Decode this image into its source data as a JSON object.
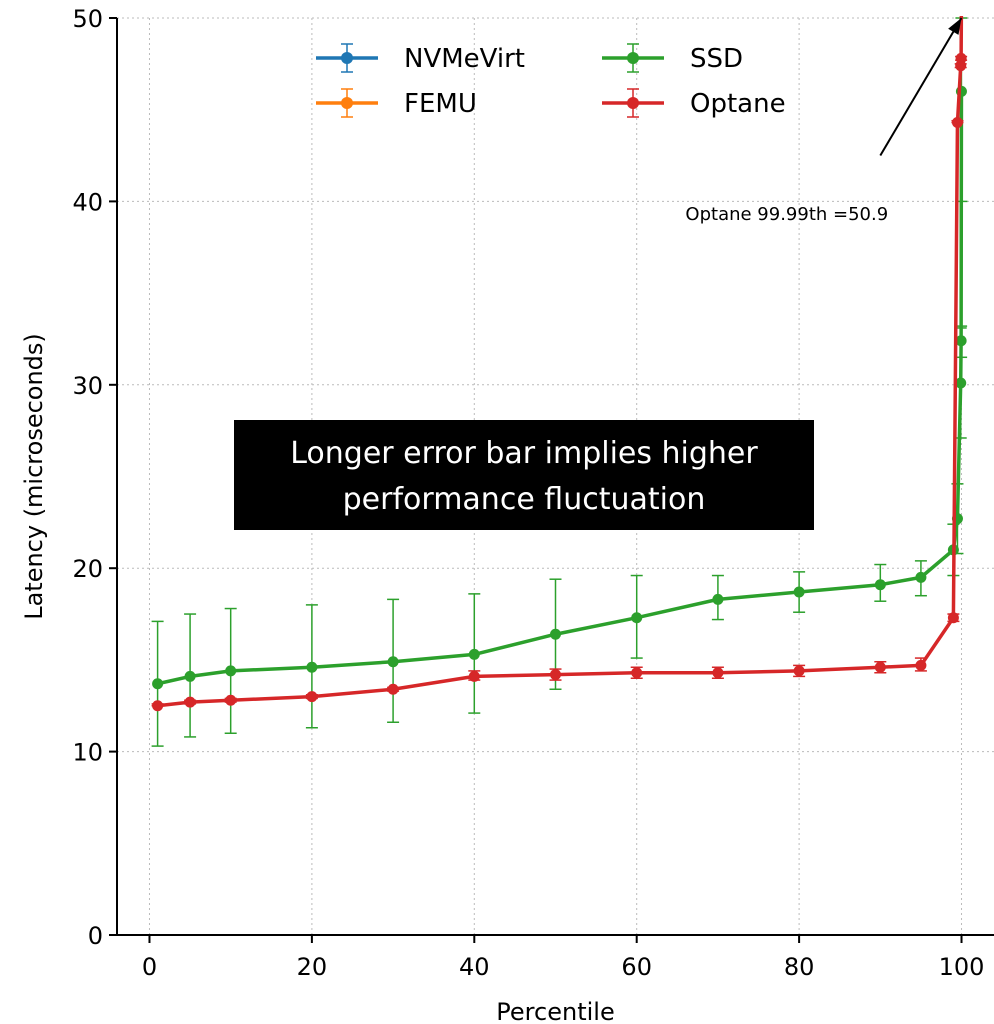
{
  "chart_data": {
    "type": "line",
    "xlabel": "Percentile",
    "ylabel": "Latency (microseconds)",
    "xlim": [
      -4,
      104
    ],
    "ylim": [
      0,
      50
    ],
    "xticks": [
      0,
      20,
      40,
      60,
      80,
      100
    ],
    "yticks": [
      0,
      10,
      20,
      30,
      40,
      50
    ],
    "grid": true,
    "legend_placement": "top-center",
    "series": [
      {
        "name": "NVMeVirt",
        "color": "#1f77b4",
        "x": [],
        "y": [],
        "err_low": [],
        "err_high": []
      },
      {
        "name": "FEMU",
        "color": "#ff7f0e",
        "x": [],
        "y": [],
        "err_low": [],
        "err_high": []
      },
      {
        "name": "SSD",
        "color": "#2ca02c",
        "x": [
          1,
          5,
          10,
          20,
          30,
          40,
          50,
          60,
          70,
          80,
          90,
          95,
          99,
          99.5,
          99.9,
          99.95,
          99.99
        ],
        "y": [
          13.7,
          14.1,
          14.4,
          14.6,
          14.9,
          15.3,
          16.4,
          17.3,
          18.3,
          18.7,
          19.1,
          19.5,
          21.0,
          22.7,
          30.1,
          32.4,
          46.0
        ],
        "err_low": [
          10.3,
          10.8,
          11.0,
          11.3,
          11.6,
          12.1,
          13.4,
          15.1,
          17.2,
          17.6,
          18.2,
          18.5,
          19.6,
          20.8,
          27.1,
          31.5,
          40.0
        ],
        "err_high": [
          17.1,
          17.5,
          17.8,
          18.0,
          18.3,
          18.6,
          19.4,
          19.6,
          19.6,
          19.8,
          20.2,
          20.4,
          22.4,
          24.6,
          33.1,
          33.2,
          50.0
        ]
      },
      {
        "name": "Optane",
        "color": "#d62728",
        "x": [
          1,
          5,
          10,
          20,
          30,
          40,
          50,
          60,
          70,
          80,
          90,
          95,
          99,
          99.5,
          99.9,
          99.95,
          99.99
        ],
        "y": [
          12.5,
          12.7,
          12.8,
          13.0,
          13.4,
          14.1,
          14.2,
          14.3,
          14.3,
          14.4,
          14.6,
          14.7,
          17.3,
          44.3,
          47.4,
          47.8,
          50.9
        ],
        "err_low": [
          12.5,
          12.6,
          12.7,
          12.9,
          13.3,
          13.9,
          13.9,
          14.0,
          14.0,
          14.1,
          14.3,
          14.4,
          17.1,
          44.3,
          47.3,
          47.7,
          50.9
        ],
        "err_high": [
          12.6,
          12.8,
          12.9,
          13.1,
          13.5,
          14.4,
          14.5,
          14.6,
          14.6,
          14.7,
          14.9,
          15.1,
          17.5,
          44.4,
          47.5,
          47.9,
          51.0
        ]
      }
    ],
    "annotations": [
      {
        "text": "Optane 99.99th =50.9",
        "text_x": 66,
        "text_y": 39.3,
        "arrow_from_x": 90,
        "arrow_from_y": 42.5,
        "arrow_to_x": 99.99,
        "arrow_to_y": 50.0
      }
    ],
    "callout": {
      "lines": [
        "Longer error bar implies higher",
        "performance fluctuation"
      ],
      "background": "#000000",
      "text_color": "#ffffff"
    }
  }
}
